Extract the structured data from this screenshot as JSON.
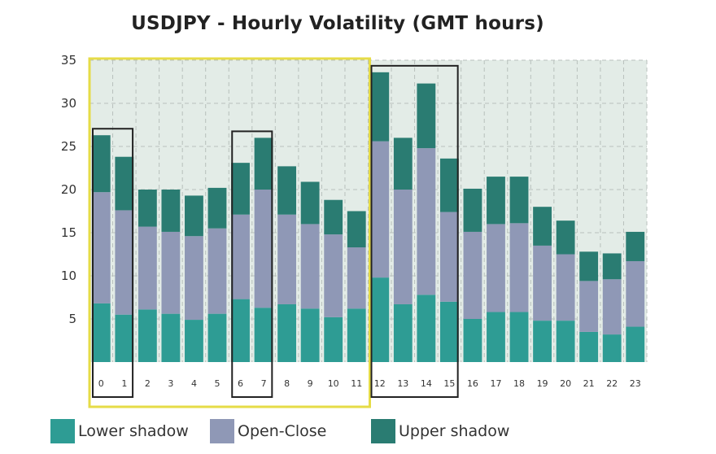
{
  "chart_data": {
    "type": "bar",
    "stacked": true,
    "title": "USDJPY - Hourly Volatility (GMT hours)",
    "xlabel": "",
    "ylabel": "",
    "categories": [
      "0",
      "1",
      "2",
      "3",
      "4",
      "5",
      "6",
      "7",
      "8",
      "9",
      "10",
      "11",
      "12",
      "13",
      "14",
      "15",
      "16",
      "17",
      "18",
      "19",
      "20",
      "21",
      "22",
      "23"
    ],
    "yticks": [
      "5",
      "10",
      "15",
      "20",
      "25",
      "30",
      "35"
    ],
    "ylim": [
      0,
      35
    ],
    "grid": true,
    "legend_position": "bottom",
    "series": [
      {
        "name": "Lower shadow",
        "color": "#2e9c94",
        "values": [
          6.8,
          5.5,
          6.1,
          5.6,
          4.9,
          5.6,
          7.3,
          6.3,
          6.7,
          6.2,
          5.2,
          6.2,
          9.8,
          6.7,
          7.8,
          7.0,
          5.0,
          5.8,
          5.8,
          4.8,
          4.8,
          3.5,
          3.2,
          4.1
        ]
      },
      {
        "name": "Open-Close",
        "color": "#8f98b6",
        "values": [
          12.9,
          12.1,
          9.6,
          9.5,
          9.7,
          9.9,
          9.8,
          13.7,
          10.4,
          9.8,
          9.6,
          7.1,
          15.8,
          13.3,
          17.0,
          10.4,
          10.1,
          10.2,
          10.3,
          8.7,
          7.7,
          5.9,
          6.4,
          7.6
        ]
      },
      {
        "name": "Upper shadow",
        "color": "#2a7c72",
        "values": [
          6.6,
          6.2,
          4.3,
          4.9,
          4.7,
          4.7,
          6.0,
          6.0,
          5.6,
          4.9,
          4.0,
          4.2,
          8.0,
          6.0,
          7.5,
          6.2,
          5.0,
          5.5,
          5.4,
          4.5,
          3.9,
          3.4,
          3.0,
          3.4
        ]
      }
    ],
    "highlight_boxes": [
      {
        "from": "0",
        "to": "11",
        "color": "#e6dc47"
      },
      {
        "from": "0",
        "to": "1",
        "color": "#222222"
      },
      {
        "from": "6",
        "to": "7",
        "color": "#222222"
      },
      {
        "from": "12",
        "to": "15",
        "color": "#222222"
      }
    ]
  },
  "colors": {
    "plot_background": "#e3ece7",
    "gridline": "#b8c0bc"
  }
}
